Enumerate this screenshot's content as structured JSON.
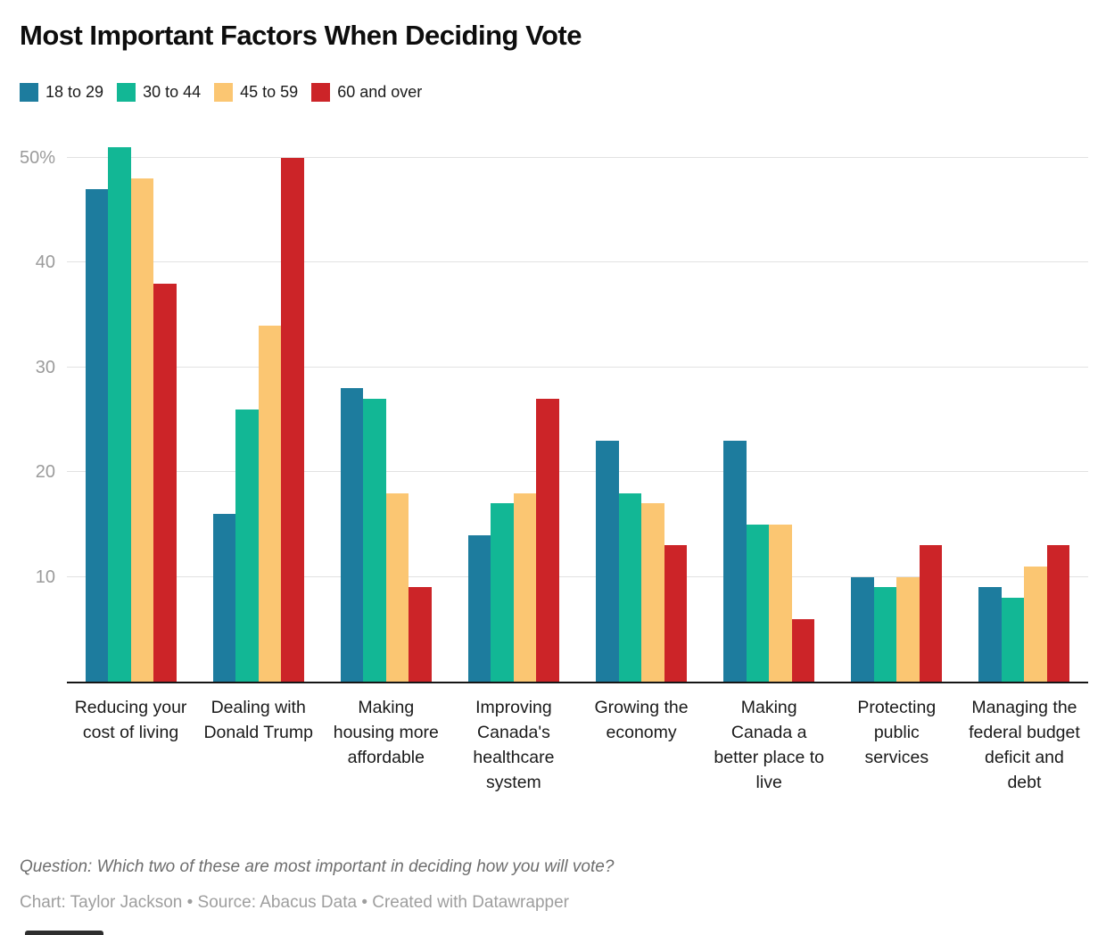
{
  "title": "Most Important Factors When Deciding Vote",
  "legend": [
    {
      "label": "18 to 29",
      "color": "#1d7c9e"
    },
    {
      "label": "30 to 44",
      "color": "#12b795"
    },
    {
      "label": "45 to 59",
      "color": "#fbc672"
    },
    {
      "label": "60 and over",
      "color": "#cc2428"
    }
  ],
  "chart_data": {
    "type": "bar",
    "title": "Most Important Factors When Deciding Vote",
    "categories": [
      "Reducing your cost of living",
      "Dealing with Donald Trump",
      "Making housing more affordable",
      "Improving Canada's healthcare system",
      "Growing the economy",
      "Making Canada a better place to live",
      "Protecting public services",
      "Managing the federal budget deficit and debt"
    ],
    "series": [
      {
        "name": "18 to 29",
        "color": "#1d7c9e",
        "values": [
          47,
          16,
          28,
          14,
          23,
          23,
          10,
          9
        ]
      },
      {
        "name": "30 to 44",
        "color": "#12b795",
        "values": [
          51,
          26,
          27,
          17,
          18,
          15,
          9,
          8
        ]
      },
      {
        "name": "45 to 59",
        "color": "#fbc672",
        "values": [
          48,
          34,
          18,
          18,
          17,
          15,
          10,
          11
        ]
      },
      {
        "name": "60 and over",
        "color": "#cc2428",
        "values": [
          38,
          50,
          9,
          27,
          13,
          6,
          13,
          13
        ]
      }
    ],
    "xlabel": "",
    "ylabel": "",
    "ylim": [
      0,
      52.6
    ],
    "y_ticks": [
      {
        "value": 10,
        "label": "10"
      },
      {
        "value": 20,
        "label": "20"
      },
      {
        "value": 30,
        "label": "30"
      },
      {
        "value": 40,
        "label": "40"
      },
      {
        "value": 50,
        "label": "50%"
      }
    ],
    "grid": true,
    "legend_position": "top"
  },
  "footer": {
    "question": "Question: Which two of these are most important in deciding how you will vote?",
    "byline": "Chart: Taylor Jackson • Source: Abacus Data • Created with Datawrapper"
  }
}
